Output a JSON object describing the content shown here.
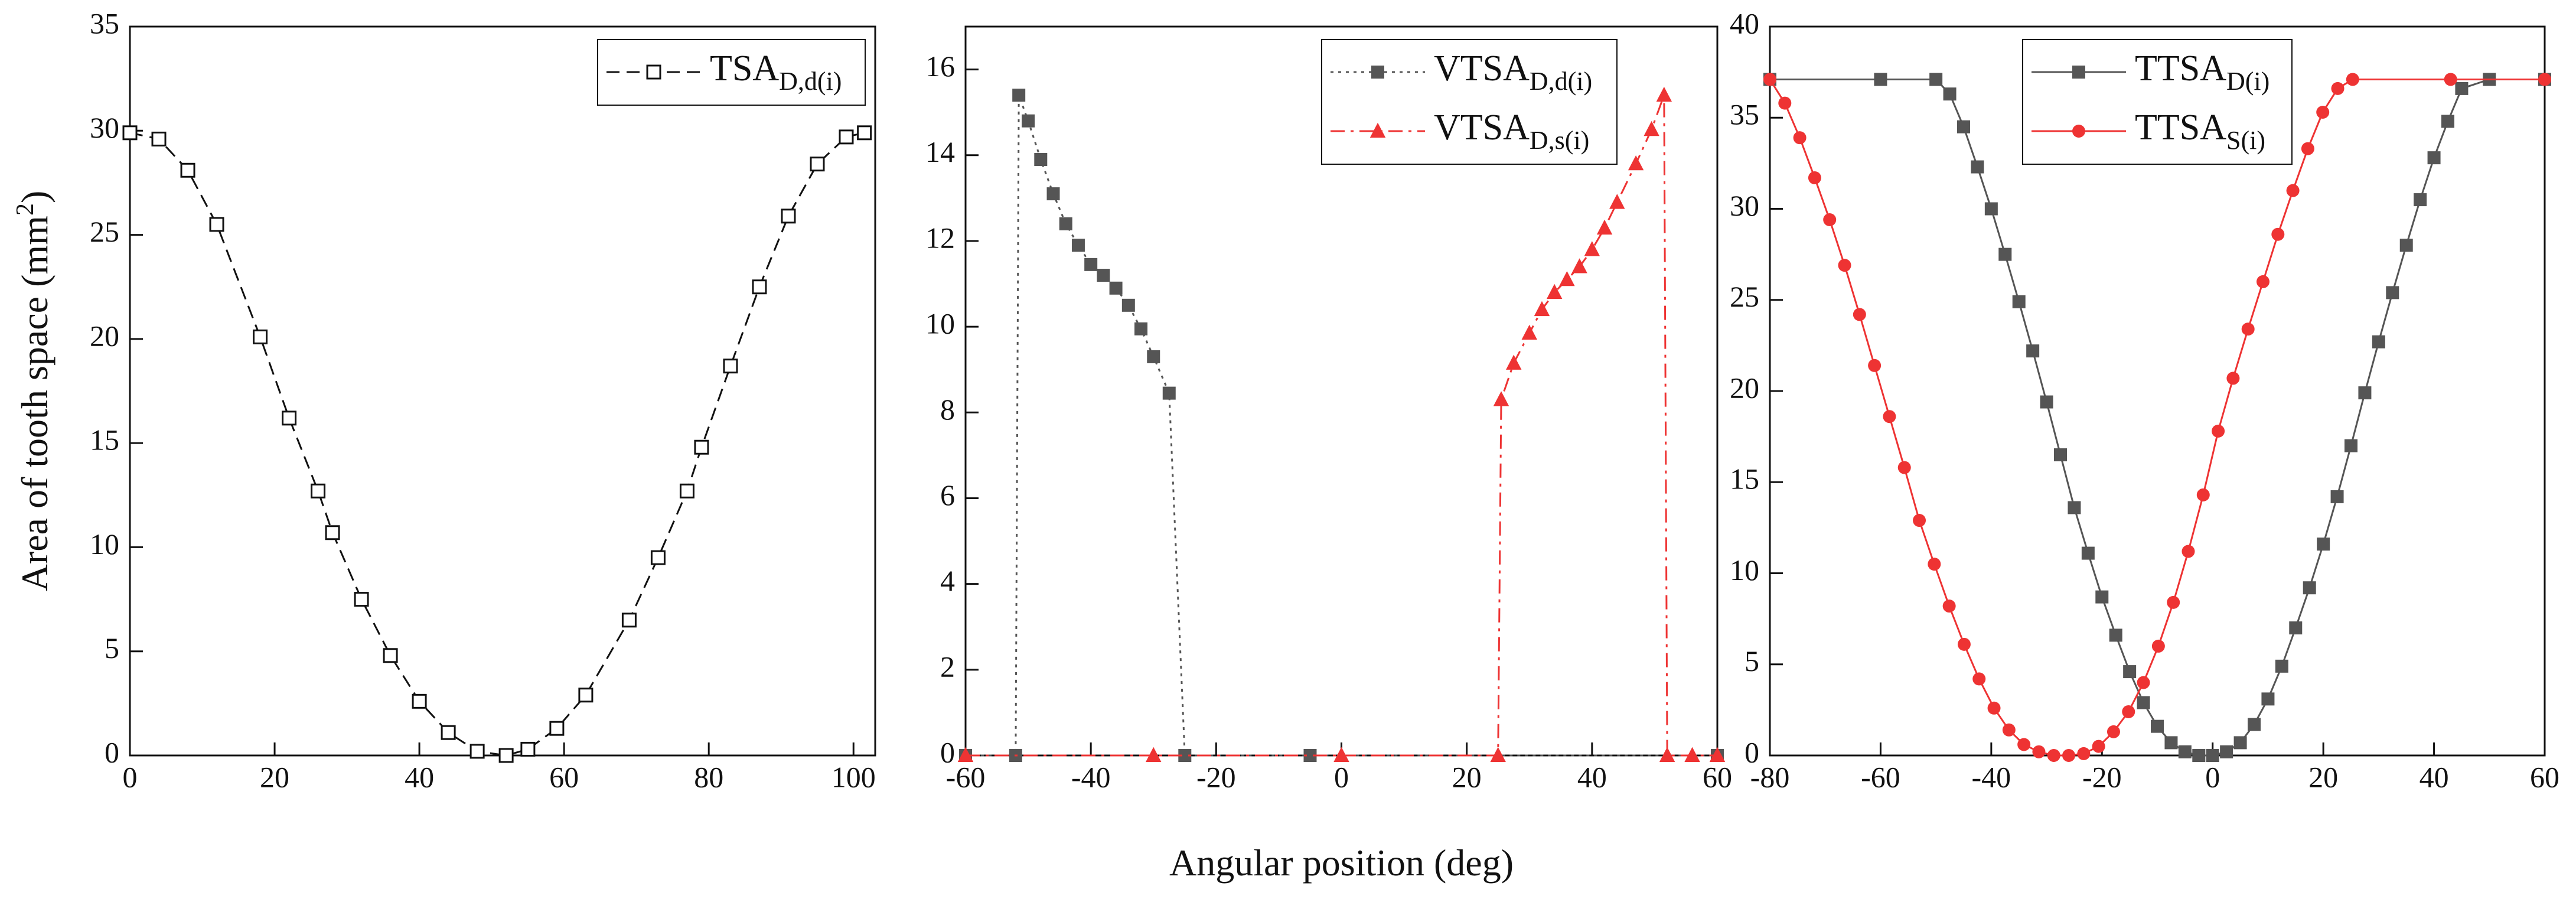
{
  "chart_data": [
    {
      "type": "line",
      "ylabel": "Area of tooth space (mm",
      "ylabel_sup": "2",
      "ylabel_end": ")",
      "xlim": [
        0,
        103
      ],
      "xticks": [
        0,
        20,
        40,
        60,
        80,
        100
      ],
      "ylim": [
        0,
        35
      ],
      "yticks": [
        0,
        5,
        10,
        15,
        20,
        25,
        30,
        35
      ],
      "series": [
        {
          "name": "TSA",
          "sub": "D,d(i)",
          "color": "#111111",
          "line_style": "dashed",
          "marker": "square-open",
          "x": [
            0,
            4,
            8,
            12,
            18,
            22,
            26,
            28,
            32,
            36,
            40,
            44,
            48,
            52,
            55,
            59,
            63,
            69,
            73,
            77,
            79,
            83,
            87,
            91,
            95,
            99,
            101.5
          ],
          "values": [
            29.9,
            29.6,
            28.1,
            25.5,
            20.1,
            16.2,
            12.7,
            10.7,
            7.5,
            4.8,
            2.6,
            1.1,
            0.2,
            0,
            0.3,
            1.3,
            2.9,
            6.5,
            9.5,
            12.7,
            14.8,
            18.7,
            22.5,
            25.9,
            28.4,
            29.7,
            29.9
          ]
        }
      ]
    },
    {
      "type": "line",
      "xlabel": "Angular position (deg)",
      "xlim": [
        -60,
        60
      ],
      "xticks": [
        -60,
        -40,
        -20,
        0,
        20,
        40,
        60
      ],
      "ylim": [
        0,
        17
      ],
      "yticks": [
        0,
        2,
        4,
        6,
        8,
        10,
        12,
        14,
        16
      ],
      "series": [
        {
          "name": "VTSA",
          "sub": "D,d(i)",
          "color": "#555555",
          "line_style": "dotted",
          "marker": "square",
          "x": [
            -60,
            -52,
            -51.5,
            -50,
            -48,
            -46,
            -44,
            -42,
            -40,
            -38,
            -36,
            -34,
            -32,
            -30,
            -27.5,
            -25,
            -5,
            60
          ],
          "values": [
            0,
            0,
            15.4,
            14.8,
            13.9,
            13.1,
            12.4,
            11.9,
            11.45,
            11.2,
            10.9,
            10.5,
            9.95,
            9.3,
            8.45,
            0,
            0,
            0
          ]
        },
        {
          "name": "VTSA",
          "sub": "D,s(i)",
          "color": "#ee3333",
          "line_style": "dashdot",
          "marker": "triangle",
          "x": [
            -60,
            -30,
            0,
            25,
            25.5,
            27.5,
            30,
            32,
            34,
            36,
            38,
            40,
            42,
            44,
            47,
            49.5,
            51.5,
            52,
            56,
            60
          ],
          "values": [
            0,
            0,
            0,
            0,
            8.3,
            9.15,
            9.85,
            10.4,
            10.8,
            11.1,
            11.4,
            11.8,
            12.3,
            12.9,
            13.8,
            14.6,
            15.4,
            0,
            0,
            0
          ]
        }
      ]
    },
    {
      "type": "line",
      "xlim": [
        -80,
        60
      ],
      "xticks": [
        -80,
        -60,
        -40,
        -20,
        0,
        20,
        40,
        60
      ],
      "ylim": [
        0,
        40
      ],
      "yticks": [
        0,
        5,
        10,
        15,
        20,
        25,
        30,
        35,
        40
      ],
      "series": [
        {
          "name": "TTSA",
          "sub": "D(i)",
          "color": "#555555",
          "line_style": "solid",
          "marker": "square",
          "x": [
            -80,
            -60,
            -50,
            -47.5,
            -45,
            -42.5,
            -40,
            -37.5,
            -35,
            -32.5,
            -30,
            -27.5,
            -25,
            -22.5,
            -20,
            -17.5,
            -15,
            -12.5,
            -10,
            -7.5,
            -5,
            -2.5,
            0,
            2.5,
            5,
            7.5,
            10,
            12.5,
            15,
            17.5,
            20,
            22.5,
            25,
            27.5,
            30,
            32.5,
            35,
            37.5,
            40,
            42.5,
            45,
            50,
            60
          ],
          "values": [
            37.1,
            37.1,
            37.1,
            36.3,
            34.5,
            32.3,
            30,
            27.5,
            24.9,
            22.2,
            19.4,
            16.5,
            13.6,
            11.1,
            8.7,
            6.6,
            4.6,
            2.9,
            1.6,
            0.7,
            0.2,
            0,
            0,
            0.2,
            0.7,
            1.7,
            3.1,
            4.9,
            7,
            9.2,
            11.6,
            14.2,
            17,
            19.9,
            22.7,
            25.4,
            28,
            30.5,
            32.8,
            34.8,
            36.6,
            37.1,
            37.1
          ]
        },
        {
          "name": "TTSA",
          "sub": "S(i)",
          "color": "#ee3333",
          "line_style": "solid",
          "marker": "circle",
          "x": [
            -80,
            -77.3,
            -74.6,
            -71.9,
            -69.2,
            -66.5,
            -63.8,
            -61.1,
            -58.4,
            -55.7,
            -53,
            -50.3,
            -47.6,
            -44.9,
            -42.2,
            -39.5,
            -36.8,
            -34.1,
            -31.4,
            -28.7,
            -26,
            -23.3,
            -20.6,
            -17.9,
            -15.2,
            -12.5,
            -9.8,
            -7.1,
            -4.4,
            -1.7,
            1,
            3.7,
            6.4,
            9.1,
            11.8,
            14.5,
            17.2,
            19.9,
            22.6,
            25.3,
            43,
            60
          ],
          "values": [
            37.1,
            35.8,
            33.9,
            31.7,
            29.4,
            26.9,
            24.2,
            21.4,
            18.6,
            15.8,
            12.9,
            10.5,
            8.2,
            6.1,
            4.2,
            2.6,
            1.4,
            0.6,
            0.2,
            0,
            0,
            0.1,
            0.5,
            1.3,
            2.4,
            4,
            6,
            8.4,
            11.2,
            14.3,
            17.8,
            20.7,
            23.4,
            26,
            28.6,
            31,
            33.3,
            35.3,
            36.6,
            37.1,
            37.1,
            37.1
          ]
        }
      ]
    }
  ]
}
